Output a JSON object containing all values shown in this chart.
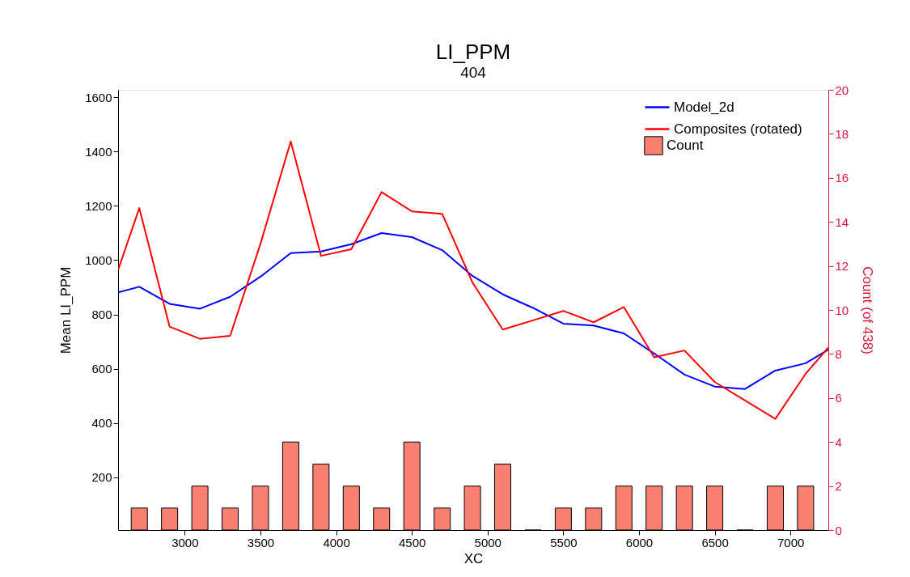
{
  "chart_data": {
    "type": "line",
    "title": "LI_PPM",
    "subtitle": "404",
    "xlabel": "XC",
    "ylabel": "Mean LI_PPM",
    "y2label": "Count (of 438)",
    "xlim": [
      2560,
      7250
    ],
    "xticks": [
      3000,
      3500,
      4000,
      4500,
      5000,
      5500,
      6000,
      6500,
      7000
    ],
    "ylim": [
      5,
      1628
    ],
    "yticks": [
      200,
      400,
      600,
      800,
      1000,
      1200,
      1400,
      1600
    ],
    "y2lim": [
      0,
      20
    ],
    "y2ticks": [
      0,
      2,
      4,
      6,
      8,
      10,
      12,
      14,
      16,
      18,
      20
    ],
    "legend": "top right",
    "series": [
      {
        "name": "Count",
        "type": "bar",
        "axis": "y2",
        "color": "#fa8072",
        "x": [
          2700,
          2900,
          3100,
          3300,
          3500,
          3700,
          3900,
          4100,
          4300,
          4500,
          4700,
          4900,
          5100,
          5300,
          5500,
          5700,
          5900,
          6100,
          6300,
          6500,
          6700,
          6900,
          7100
        ],
        "values": [
          1,
          1,
          2,
          1,
          2,
          4,
          3,
          2,
          1,
          4,
          1,
          2,
          3,
          0,
          1,
          1,
          2,
          2,
          2,
          2,
          0,
          2,
          2
        ]
      },
      {
        "name": "Model_2d",
        "color": "#0000ff",
        "x": [
          2560,
          2700,
          2900,
          3100,
          3300,
          3500,
          3700,
          3900,
          4100,
          4300,
          4500,
          4700,
          4900,
          5100,
          5300,
          5500,
          5700,
          5900,
          6100,
          6300,
          6500,
          6700,
          6900,
          7100,
          7250
        ],
        "values": [
          881,
          902,
          839,
          821,
          865,
          939,
          1026,
          1032,
          1059,
          1100,
          1085,
          1037,
          942,
          874,
          824,
          766,
          759,
          730,
          656,
          578,
          534,
          525,
          593,
          620,
          670
        ]
      },
      {
        "name": "Composites (rotated)",
        "color": "#ff0000",
        "x": [
          2560,
          2700,
          2900,
          3100,
          3300,
          3500,
          3700,
          3900,
          4100,
          4300,
          4500,
          4700,
          4900,
          5100,
          5300,
          5500,
          5700,
          5900,
          6100,
          6300,
          6500,
          6700,
          6900,
          7100,
          7250
        ],
        "values": [
          964,
          1192,
          755,
          710,
          721,
          1060,
          1438,
          1016,
          1040,
          1251,
          1180,
          1171,
          918,
          744,
          778,
          813,
          771,
          827,
          642,
          667,
          551,
          483,
          415,
          581,
          678
        ]
      }
    ]
  }
}
